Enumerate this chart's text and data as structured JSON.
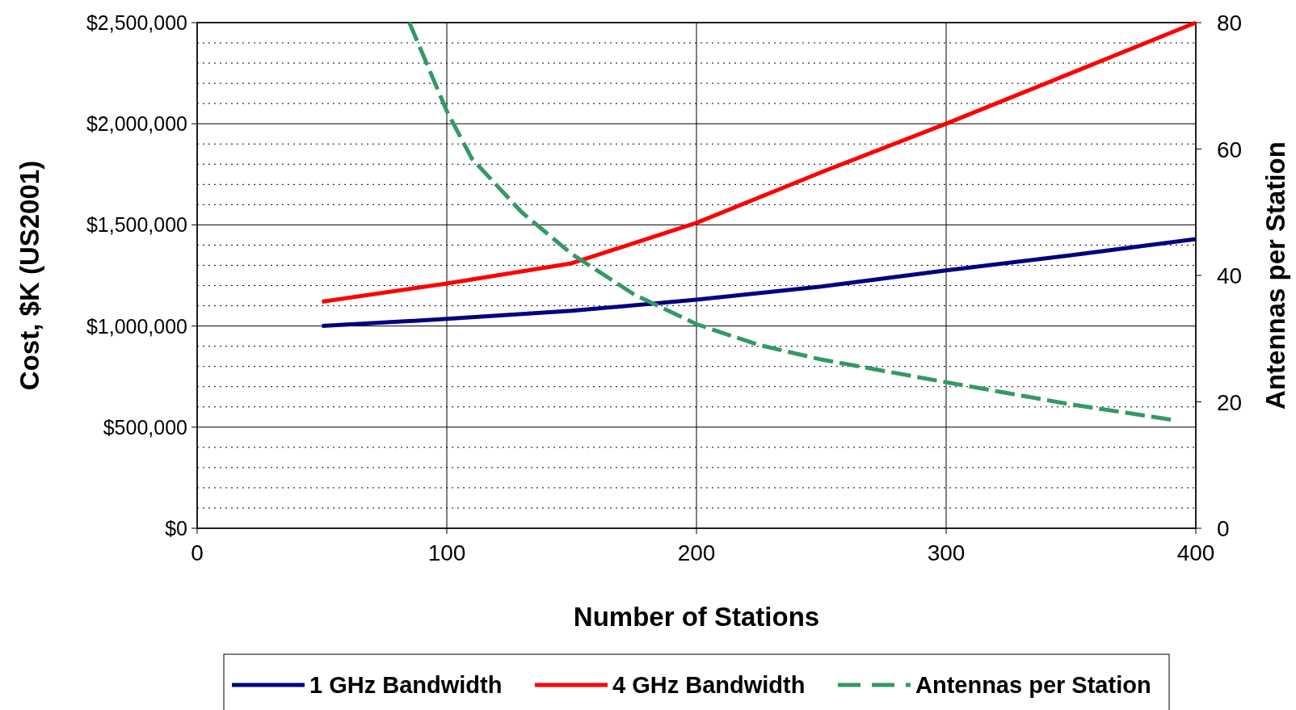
{
  "chart_data": {
    "type": "line",
    "xlabel": "Number of Stations",
    "ylabel": "Cost, $K (US2001)",
    "y2label": "Antennas per Station",
    "xlim": [
      0,
      400
    ],
    "xticks": [
      0,
      100,
      200,
      300,
      400
    ],
    "ylim": [
      0,
      2500000
    ],
    "yticks": [
      {
        "value": 0,
        "label": "$0"
      },
      {
        "value": 500000,
        "label": "$500,000"
      },
      {
        "value": 1000000,
        "label": "$1,000,000"
      },
      {
        "value": 1500000,
        "label": "$1,500,000"
      },
      {
        "value": 2000000,
        "label": "$2,000,000"
      },
      {
        "value": 2500000,
        "label": "$2,500,000"
      }
    ],
    "y2lim": [
      0,
      80
    ],
    "y2ticks": [
      0,
      20,
      40,
      60,
      80
    ],
    "grid": true,
    "legend": "bottom",
    "series": [
      {
        "name": "1 GHz Bandwidth",
        "color": "#000080",
        "x": [
          50,
          100,
          150,
          200,
          250,
          300,
          350,
          400
        ],
        "values": [
          1000000,
          1035000,
          1075000,
          1130000,
          1195000,
          1275000,
          1350000,
          1430000
        ]
      },
      {
        "name": "4 GHz Bandwidth",
        "color": "#ff0000",
        "x": [
          50,
          100,
          150,
          200,
          250,
          300,
          350,
          400
        ],
        "values": [
          1120000,
          1210000,
          1310000,
          1510000,
          1760000,
          2000000,
          2250000,
          2500000
        ]
      },
      {
        "name": "Antennas per Station",
        "color": "#339966",
        "axis": "y2",
        "line_style": "dashed",
        "x": [
          85,
          100,
          110,
          130,
          150,
          175,
          200,
          225,
          250,
          300,
          350,
          390
        ],
        "values": [
          80,
          66,
          58.5,
          50,
          43.4,
          37,
          32.3,
          29,
          26.7,
          23.1,
          19.6,
          17.2
        ]
      }
    ]
  }
}
